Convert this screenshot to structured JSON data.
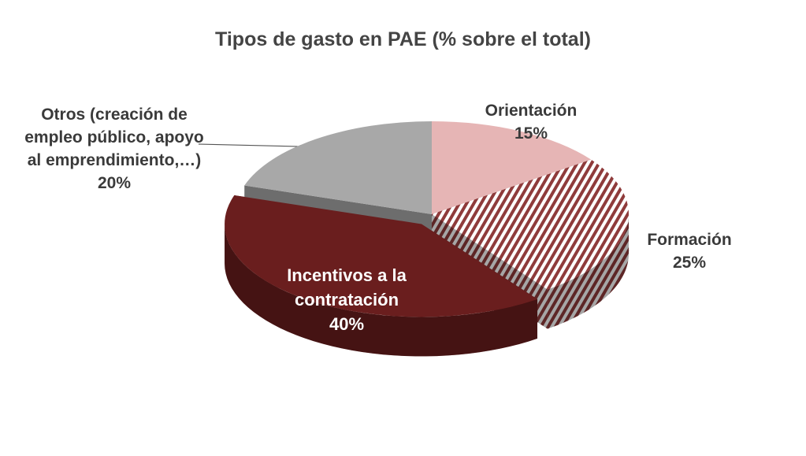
{
  "chart_data": {
    "type": "pie",
    "title": "Tipos de gasto en PAE (% sobre el total)",
    "categories": [
      "Orientación",
      "Formación",
      "Incentivos a la contratación",
      "Otros (creación de empleo público, apoyo al emprendimiento,…)"
    ],
    "values": [
      15,
      25,
      40,
      20
    ],
    "value_labels": [
      "15%",
      "25%",
      "40%",
      "20%"
    ],
    "colors": [
      "#e6b5b5",
      "#8f3b3b",
      "#6a1e1e",
      "#a8a8a8"
    ],
    "hatch": [
      false,
      true,
      false,
      false
    ],
    "exploded": [
      false,
      false,
      true,
      false
    ]
  }
}
